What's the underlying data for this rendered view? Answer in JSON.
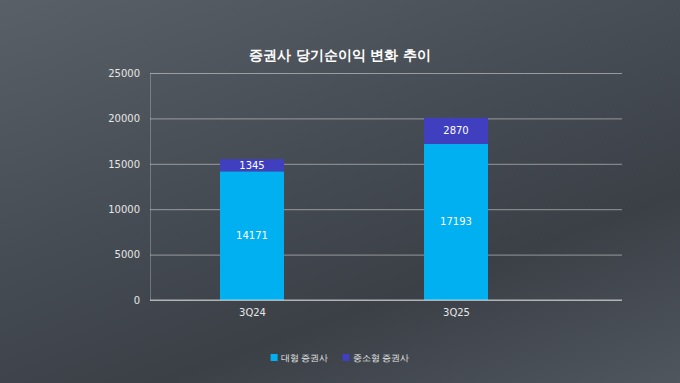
{
  "chart_data": {
    "type": "bar",
    "title": "증권사 당기순이익 변화 추이",
    "categories": [
      "3Q24",
      "3Q25"
    ],
    "series": [
      {
        "name": "대형 증권사",
        "color": "#00b0f0",
        "values": [
          14171,
          17193
        ]
      },
      {
        "name": "중소형 증권사",
        "color": "#3f3fbf",
        "values": [
          1345,
          2870
        ]
      }
    ],
    "ylim": [
      0,
      25000
    ],
    "yticks": [
      0,
      5000,
      10000,
      15000,
      20000,
      25000
    ],
    "grid": true,
    "stacked": true,
    "data_labels": true,
    "legend": "bottom"
  }
}
